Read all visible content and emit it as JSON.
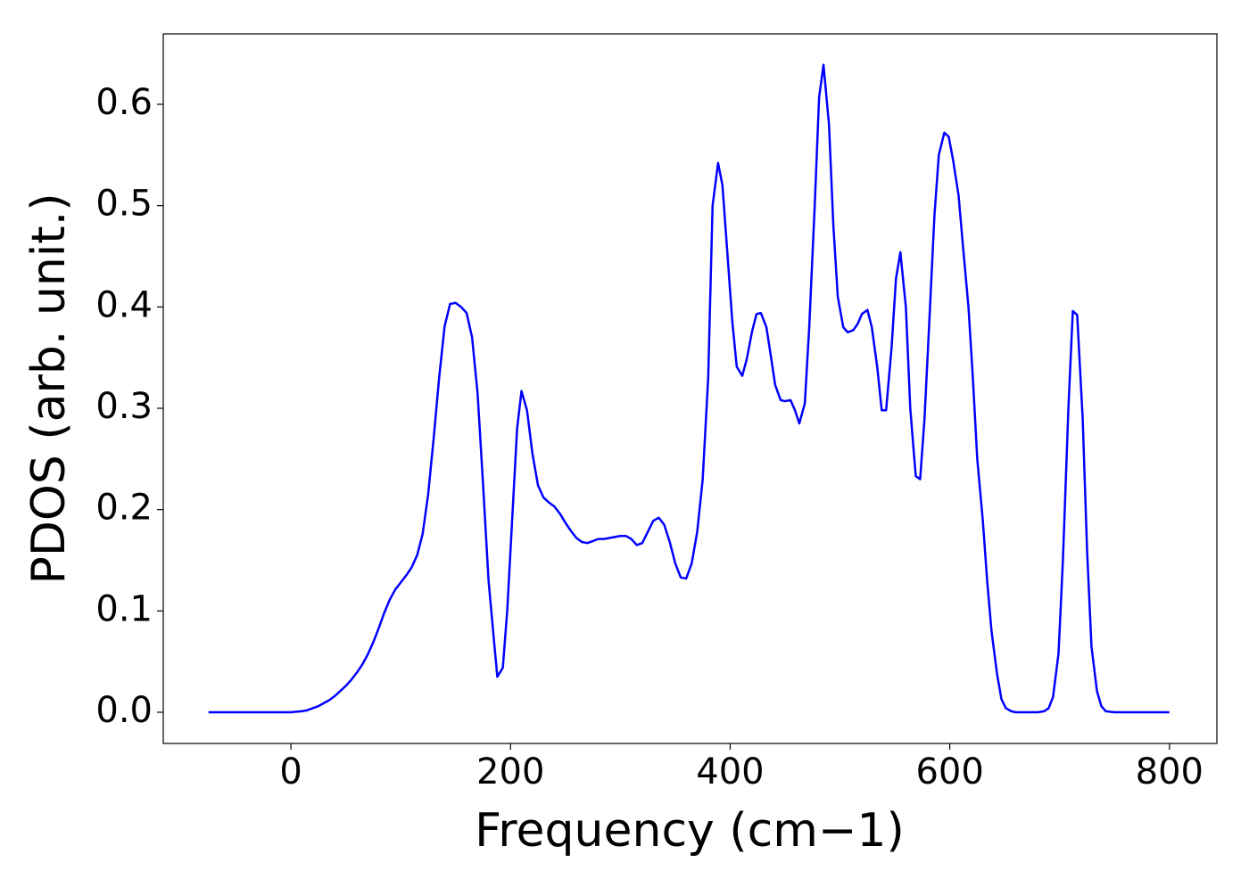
{
  "chart_data": {
    "type": "line",
    "x_label": "Frequency (cm−1)",
    "y_label": "PDOS (arb. unit.)",
    "x": [
      -75,
      -50,
      -25,
      0,
      5,
      10,
      15,
      20,
      25,
      30,
      35,
      40,
      45,
      50,
      55,
      60,
      65,
      70,
      75,
      80,
      85,
      90,
      95,
      100,
      105,
      110,
      115,
      120,
      125,
      130,
      135,
      140,
      145,
      150,
      155,
      160,
      165,
      170,
      175,
      180,
      185,
      188,
      193,
      197,
      202,
      206,
      210,
      215,
      220,
      225,
      230,
      235,
      240,
      245,
      250,
      255,
      260,
      265,
      270,
      275,
      280,
      285,
      290,
      295,
      300,
      305,
      310,
      315,
      320,
      325,
      330,
      335,
      340,
      345,
      350,
      355,
      360,
      365,
      370,
      375,
      380,
      384,
      389,
      393,
      397,
      402,
      406,
      411,
      415,
      420,
      424,
      428,
      433,
      437,
      441,
      446,
      450,
      455,
      459,
      463,
      468,
      472,
      477,
      481,
      485,
      490,
      494,
      498,
      503,
      507,
      512,
      516,
      520,
      525,
      529,
      534,
      538,
      542,
      547,
      551,
      555,
      560,
      564,
      569,
      573,
      577,
      582,
      586,
      590,
      595,
      599,
      603,
      608,
      612,
      617,
      621,
      625,
      630,
      634,
      638,
      643,
      647,
      651,
      656,
      660,
      670,
      680,
      686,
      690,
      694,
      699,
      703,
      708,
      712,
      716,
      721,
      725,
      729,
      734,
      738,
      742,
      750,
      775,
      800
    ],
    "series": [
      {
        "name": "PDOS",
        "color": "#0000ff",
        "values": [
          0,
          0,
          0,
          0,
          0.0005,
          0.001,
          0.002,
          0.004,
          0.006,
          0.009,
          0.012,
          0.016,
          0.021,
          0.026,
          0.032,
          0.039,
          0.047,
          0.057,
          0.069,
          0.083,
          0.098,
          0.111,
          0.121,
          0.128,
          0.135,
          0.143,
          0.155,
          0.176,
          0.215,
          0.27,
          0.33,
          0.381,
          0.403,
          0.404,
          0.4,
          0.394,
          0.37,
          0.315,
          0.225,
          0.13,
          0.07,
          0.035,
          0.044,
          0.1,
          0.2,
          0.28,
          0.317,
          0.298,
          0.255,
          0.224,
          0.212,
          0.207,
          0.203,
          0.196,
          0.187,
          0.179,
          0.172,
          0.168,
          0.167,
          0.169,
          0.171,
          0.171,
          0.172,
          0.173,
          0.174,
          0.174,
          0.171,
          0.165,
          0.167,
          0.178,
          0.189,
          0.192,
          0.185,
          0.168,
          0.147,
          0.133,
          0.132,
          0.147,
          0.178,
          0.23,
          0.33,
          0.5,
          0.542,
          0.52,
          0.46,
          0.385,
          0.341,
          0.332,
          0.348,
          0.376,
          0.393,
          0.394,
          0.38,
          0.352,
          0.323,
          0.308,
          0.307,
          0.308,
          0.298,
          0.285,
          0.305,
          0.38,
          0.5,
          0.607,
          0.639,
          0.58,
          0.48,
          0.41,
          0.38,
          0.375,
          0.377,
          0.383,
          0.393,
          0.397,
          0.38,
          0.34,
          0.298,
          0.298,
          0.36,
          0.428,
          0.454,
          0.4,
          0.3,
          0.233,
          0.23,
          0.29,
          0.4,
          0.49,
          0.55,
          0.572,
          0.568,
          0.545,
          0.51,
          0.46,
          0.4,
          0.33,
          0.25,
          0.19,
          0.13,
          0.08,
          0.038,
          0.013,
          0.004,
          0.001,
          0,
          0,
          0,
          0.001,
          0.004,
          0.015,
          0.058,
          0.15,
          0.3,
          0.396,
          0.392,
          0.29,
          0.16,
          0.065,
          0.021,
          0.006,
          0.001,
          0,
          0,
          0
        ]
      }
    ],
    "xlim": [
      -116.2,
      843.2
    ],
    "ylim": [
      -0.0308,
      0.6695
    ],
    "xticks": [
      0,
      200,
      400,
      600,
      800
    ],
    "yticks": [
      {
        "value": 0,
        "label": "0.0"
      },
      0.1,
      0.2,
      0.3,
      0.4,
      0.5,
      0.6
    ],
    "grid": false
  }
}
